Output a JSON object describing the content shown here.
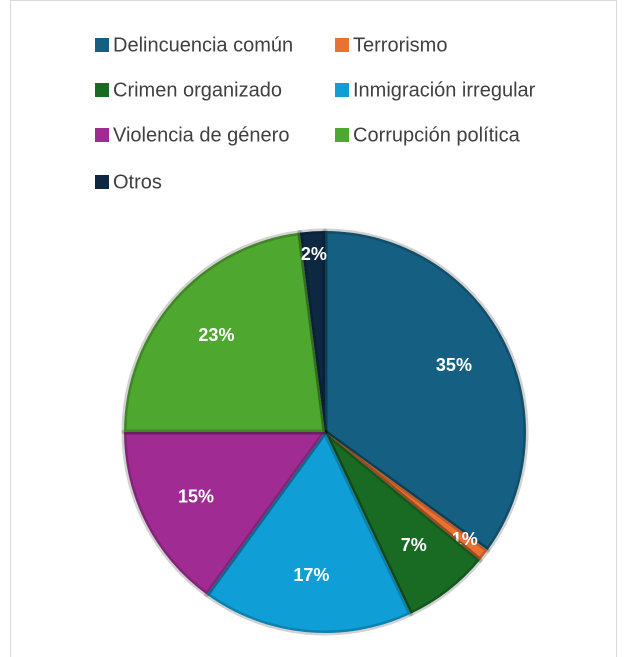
{
  "chart_data": {
    "type": "pie",
    "categories": [
      "Delincuencia común",
      "Terrorismo",
      "Crimen organizado",
      "Inmigración irregular",
      "Violencia de género",
      "Corrupción política",
      "Otros"
    ],
    "values": [
      35,
      1,
      7,
      17,
      15,
      23,
      2
    ],
    "value_labels": [
      "35%",
      "1%",
      "7%",
      "17%",
      "15%",
      "23%",
      "2%"
    ],
    "colors": [
      "#156082",
      "#e97132",
      "#196b24",
      "#0f9ed5",
      "#a02b93",
      "#4ea72e",
      "#0e2841"
    ],
    "legend": "top"
  }
}
